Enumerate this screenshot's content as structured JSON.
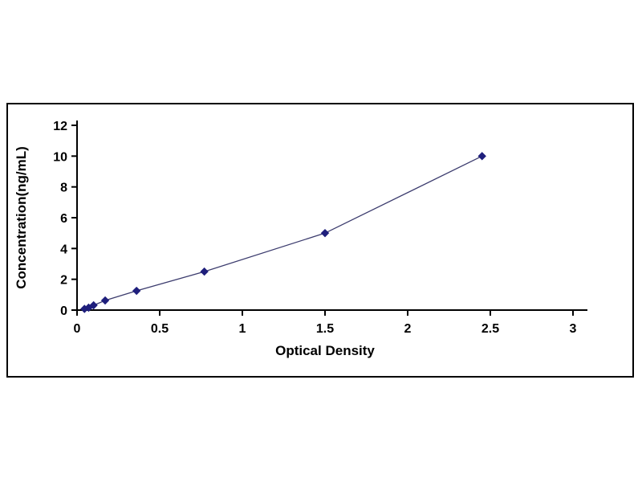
{
  "chart_data": {
    "type": "line",
    "title": "",
    "xlabel": "Optical Density",
    "ylabel": "Concentration(ng/mL)",
    "x": [
      0.045,
      0.07,
      0.1,
      0.17,
      0.36,
      0.77,
      1.5,
      2.45
    ],
    "y": [
      0.078,
      0.156,
      0.312,
      0.625,
      1.25,
      2.5,
      5.0,
      10.0
    ],
    "xlim": [
      0,
      3
    ],
    "ylim": [
      0,
      12
    ],
    "x_ticks": [
      0,
      0.5,
      1,
      1.5,
      2,
      2.5,
      3
    ],
    "x_tick_labels": [
      "0",
      "0.5",
      "1",
      "1.5",
      "2",
      "2.5",
      "3"
    ],
    "y_ticks": [
      0,
      2,
      4,
      6,
      8,
      10,
      12
    ],
    "y_tick_labels": [
      "0",
      "2",
      "4",
      "6",
      "8",
      "10",
      "12"
    ],
    "grid": false,
    "legend": false,
    "marker": "diamond",
    "colors": {
      "marker": "#1F1F7C",
      "line": "#3C3C6E",
      "axis": "#000000",
      "frame_border": "#000000",
      "background": "#FFFFFF"
    }
  }
}
